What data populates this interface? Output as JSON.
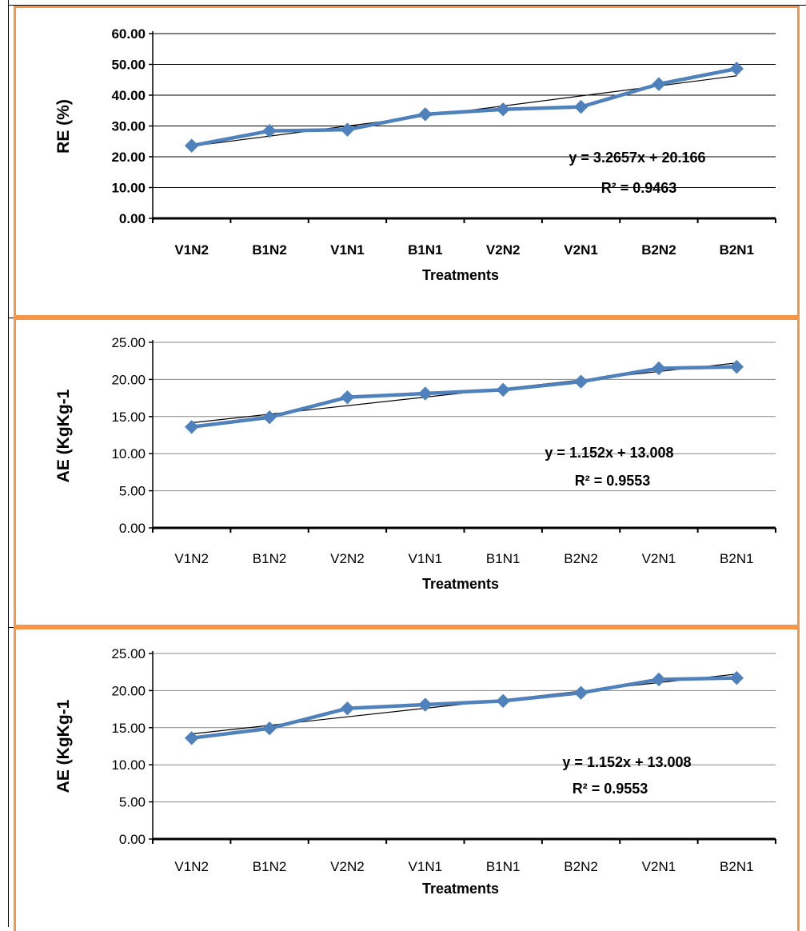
{
  "chart_data": [
    {
      "type": "line",
      "xlabel": "Treatments",
      "ylabel": "RE (%)",
      "categories": [
        "V1N2",
        "B1N2",
        "V1N1",
        "B1N1",
        "V2N2",
        "V2N1",
        "B2N2",
        "B2N1"
      ],
      "values": [
        23.6,
        28.4,
        28.8,
        33.8,
        35.4,
        36.2,
        43.6,
        48.6
      ],
      "ylim": [
        0,
        60
      ],
      "yticks": [
        "0.00",
        "10.00",
        "20.00",
        "30.00",
        "40.00",
        "50.00",
        "60.00"
      ],
      "grid": true,
      "bold_labels": true,
      "gridline_color": "#000000",
      "line_color": "#4F81BD",
      "trend_color": "#000000",
      "trendline": {
        "slope": 3.2657,
        "intercept": 20.166
      },
      "equation": "y = 3.2657x + 20.166",
      "r2_label": "R² = 0.9463"
    },
    {
      "type": "line",
      "xlabel": "Treatments",
      "ylabel": "AE (KgKg-1",
      "categories": [
        "V1N2",
        "B1N2",
        "V2N2",
        "V1N1",
        "B1N1",
        "B2N2",
        "V2N1",
        "B2N1"
      ],
      "values": [
        13.6,
        14.9,
        17.6,
        18.1,
        18.6,
        19.7,
        21.5,
        21.7
      ],
      "ylim": [
        0,
        25
      ],
      "yticks": [
        "0.00",
        "5.00",
        "10.00",
        "15.00",
        "20.00",
        "25.00"
      ],
      "grid": true,
      "bold_labels": false,
      "gridline_color": "#868686",
      "line_color": "#4F81BD",
      "trend_color": "#000000",
      "trendline": {
        "slope": 1.152,
        "intercept": 13.008
      },
      "equation": "y = 1.152x + 13.008",
      "r2_label": "R² = 0.9553"
    },
    {
      "type": "line",
      "xlabel": "Treatments",
      "ylabel": "AE (KgKg-1",
      "categories": [
        "V1N2",
        "B1N2",
        "V2N2",
        "V1N1",
        "B1N1",
        "B2N2",
        "V2N1",
        "B2N1"
      ],
      "values": [
        13.6,
        14.9,
        17.6,
        18.1,
        18.6,
        19.7,
        21.5,
        21.7
      ],
      "ylim": [
        0,
        25
      ],
      "yticks": [
        "0.00",
        "5.00",
        "10.00",
        "15.00",
        "20.00",
        "25.00"
      ],
      "grid": true,
      "bold_labels": false,
      "gridline_color": "#868686",
      "line_color": "#4F81BD",
      "trend_color": "#000000",
      "trendline": {
        "slope": 1.152,
        "intercept": 13.008
      },
      "equation": "y = 1.152x + 13.008",
      "r2_label": "R² = 0.9553"
    }
  ]
}
